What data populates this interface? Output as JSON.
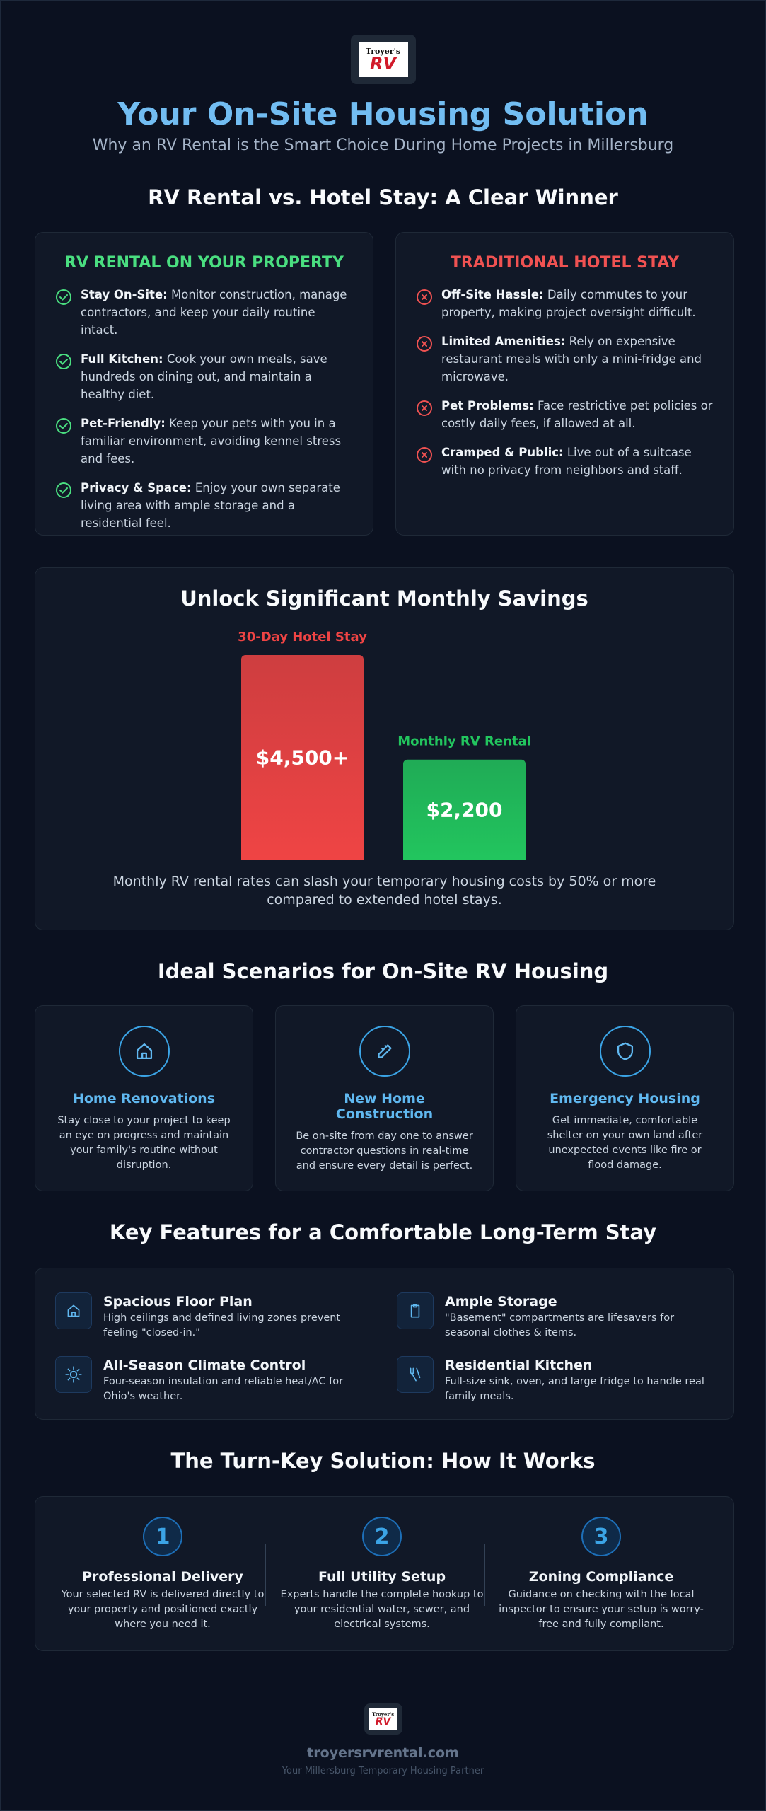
{
  "logo": {
    "top": "Troyer's",
    "mark": "RV"
  },
  "title": "Your On-Site Housing Solution",
  "subtitle": "Why an RV Rental is the Smart Choice During Home Projects in Millersburg",
  "comparison": {
    "heading": "RV Rental vs. Hotel Stay: A Clear Winner",
    "columns": [
      {
        "title": "RV RENTAL ON YOUR PROPERTY",
        "color": "#4ade80",
        "items": [
          {
            "label": "Stay On-Site:",
            "text": "Monitor construction, manage contractors, and keep your daily routine intact."
          },
          {
            "label": "Full Kitchen:",
            "text": "Cook your own meals, save hundreds on dining out, and maintain a healthy diet."
          },
          {
            "label": "Pet-Friendly:",
            "text": "Keep your pets with you in a familiar environment, avoiding kennel stress and fees."
          },
          {
            "label": "Privacy & Space:",
            "text": "Enjoy your own separate living area with ample storage and a residential feel."
          }
        ]
      },
      {
        "title": "TRADITIONAL HOTEL STAY",
        "color": "#f05252",
        "items": [
          {
            "label": "Off-Site Hassle:",
            "text": "Daily commutes to your property, making project oversight difficult."
          },
          {
            "label": "Limited Amenities:",
            "text": "Rely on expensive restaurant meals with only a mini-fridge and microwave."
          },
          {
            "label": "Pet Problems:",
            "text": "Face restrictive pet policies or costly daily fees, if allowed at all."
          },
          {
            "label": "Cramped & Public:",
            "text": "Live out of a suitcase with no privacy from neighbors and staff."
          }
        ]
      }
    ]
  },
  "chart_data": {
    "type": "bar",
    "title": "Unlock Significant Monthly Savings",
    "categories": [
      "30-Day Hotel Stay",
      "Monthly RV Rental"
    ],
    "values": [
      4500,
      2200
    ],
    "value_labels": [
      "$4,500+",
      "$2,200"
    ],
    "colors": [
      "#ef4444",
      "#22c55e"
    ],
    "note": "Monthly RV rental rates can slash your temporary housing costs by 50% or more compared to extended hotel stays."
  },
  "scenarios": {
    "heading": "Ideal Scenarios for On-Site RV Housing",
    "items": [
      {
        "title": "Home Renovations",
        "text": "Stay close to your project to keep an eye on progress and maintain your family's routine without disruption."
      },
      {
        "title": "New Home Construction",
        "text": "Be on-site from day one to answer contractor questions in real-time and ensure every detail is perfect."
      },
      {
        "title": "Emergency Housing",
        "text": "Get immediate, comfortable shelter on your own land after unexpected events like fire or flood damage."
      }
    ]
  },
  "features": {
    "heading": "Key Features for a Comfortable Long-Term Stay",
    "items": [
      {
        "title": "Spacious Floor Plan",
        "text": "High ceilings and defined living zones prevent feeling \"closed-in.\""
      },
      {
        "title": "Ample Storage",
        "text": "\"Basement\" compartments are lifesavers for seasonal clothes & items."
      },
      {
        "title": "All-Season Climate Control",
        "text": "Four-season insulation and reliable heat/AC for Ohio's weather."
      },
      {
        "title": "Residential Kitchen",
        "text": "Full-size sink, oven, and large fridge to handle real family meals."
      }
    ]
  },
  "steps": {
    "heading": "The Turn-Key Solution: How It Works",
    "items": [
      {
        "number": 1,
        "title": "Professional Delivery",
        "text": "Your selected RV is delivered directly to your property and positioned exactly where you need it."
      },
      {
        "number": 2,
        "title": "Full Utility Setup",
        "text": "Experts handle the complete hookup to your residential water, sewer, and electrical systems."
      },
      {
        "number": 3,
        "title": "Zoning Compliance",
        "text": "Guidance on checking with the local inspector to ensure your setup is worry-free and fully compliant."
      }
    ]
  },
  "footer": {
    "url": "troyersrvrental.com",
    "tagline": "Your Millersburg Temporary Housing Partner"
  }
}
